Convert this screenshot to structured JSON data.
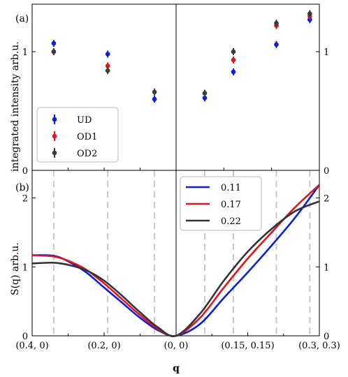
{
  "chart_data": [
    {
      "panel": "(a)",
      "type": "scatter",
      "ylabel": "integrated intensity arb.u.",
      "ylim": [
        0,
        1.4
      ],
      "yticks": [
        "0",
        "1"
      ],
      "yticks_right": [
        "0",
        "1"
      ],
      "x_positions": [
        0.34,
        0.19,
        0.06,
        -0.06,
        -0.12,
        -0.21,
        -0.28
      ],
      "legend": {
        "placement": "lower-left",
        "entries": [
          "UD",
          "OD1",
          "OD2"
        ]
      },
      "series": [
        {
          "name": "UD",
          "color": "#0a1fe0",
          "values": [
            1.07,
            0.98,
            0.6,
            0.61,
            0.83,
            1.06,
            1.27
          ]
        },
        {
          "name": "OD1",
          "color": "#e4141b",
          "values": [
            1.0,
            0.88,
            null,
            null,
            0.93,
            1.22,
            1.3
          ]
        },
        {
          "name": "OD2",
          "color": "#3b3b3b",
          "values": [
            1.0,
            0.84,
            0.66,
            0.65,
            1.0,
            1.24,
            1.32
          ]
        }
      ]
    },
    {
      "panel": "(b)",
      "type": "line",
      "ylabel": "S(q) arb.u.",
      "xlabel": "q",
      "ylim": [
        0,
        2.4
      ],
      "yticks": [
        "0",
        "1",
        "2"
      ],
      "yticks_right": [
        "0",
        "1",
        "2"
      ],
      "xticks": [
        "(0.4, 0)",
        "(0.2, 0)",
        "(0, 0)",
        "(0.15, 0.15)",
        "(0.3, 0.3)"
      ],
      "dashed_lines_x": [
        0.34,
        0.19,
        0.06,
        -0.06,
        -0.12,
        -0.21,
        -0.28
      ],
      "legend": {
        "placement": "top-right",
        "entries": [
          "0.11",
          "0.17",
          "0.22"
        ]
      },
      "series": [
        {
          "name": "0.11",
          "color": "#0a1fe0",
          "x": [
            0.4,
            0.34,
            0.3,
            0.25,
            0.2,
            0.15,
            0.1,
            0.05,
            0,
            -0.05,
            -0.1,
            -0.15,
            -0.2,
            -0.25,
            -0.3
          ],
          "values": [
            1.17,
            1.16,
            1.08,
            0.92,
            0.7,
            0.48,
            0.26,
            0.08,
            0.0,
            0.17,
            0.55,
            0.92,
            1.31,
            1.72,
            2.19
          ]
        },
        {
          "name": "0.17",
          "color": "#e4141b",
          "x": [
            0.4,
            0.34,
            0.3,
            0.25,
            0.2,
            0.15,
            0.1,
            0.05,
            0,
            -0.05,
            -0.1,
            -0.15,
            -0.2,
            -0.25,
            -0.3
          ],
          "values": [
            1.17,
            1.15,
            1.09,
            0.96,
            0.76,
            0.53,
            0.3,
            0.1,
            0.0,
            0.26,
            0.7,
            1.12,
            1.5,
            1.87,
            2.19
          ]
        },
        {
          "name": "0.22",
          "color": "#333333",
          "x": [
            0.4,
            0.34,
            0.3,
            0.25,
            0.2,
            0.15,
            0.1,
            0.05,
            0,
            -0.05,
            -0.1,
            -0.15,
            -0.2,
            -0.25,
            -0.3
          ],
          "values": [
            1.05,
            1.06,
            1.03,
            0.95,
            0.8,
            0.58,
            0.34,
            0.12,
            0.0,
            0.32,
            0.8,
            1.22,
            1.55,
            1.81,
            1.95
          ]
        }
      ]
    }
  ]
}
